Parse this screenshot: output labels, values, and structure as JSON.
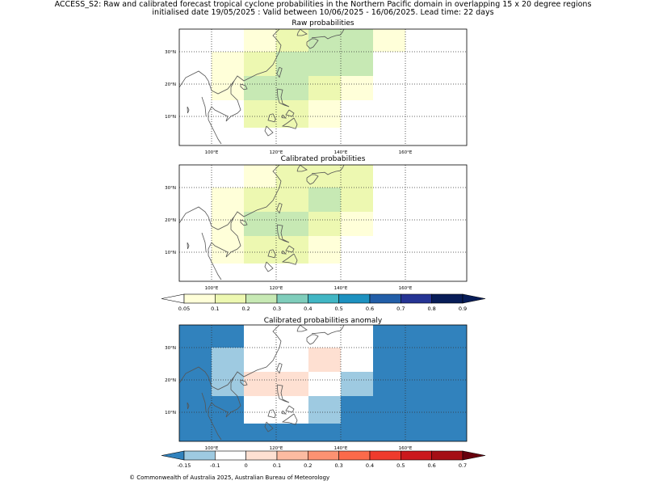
{
  "header": {
    "line1": "ACCESS_S2: Raw and calibrated forecast tropical cyclone probabilities in the Northern Pacific domain in overlapping 15 x 20 degree regions",
    "line2": "initialised date 19/05/2025 :  Valid between 10/06/2025 - 16/06/2025. Lead time: 22 days"
  },
  "footer": "© Commonwealth of Australia 2025, Australian Bureau of Meteorology",
  "axes": {
    "lon_ticks": [
      100,
      120,
      140,
      160
    ],
    "lat_ticks": [
      10,
      20,
      30
    ],
    "lon_labels": [
      "100°E",
      "120°E",
      "140°E",
      "160°E"
    ],
    "lat_labels": [
      "10°N",
      "20°N",
      "30°N"
    ],
    "lon_range": [
      90,
      179
    ],
    "lat_range": [
      1,
      37
    ],
    "grid": "dotted"
  },
  "colors": {
    "prob_bins": [
      "#ffffd9",
      "#edf8b1",
      "#c7e9b4",
      "#7fcdbb",
      "#41b6c4",
      "#1d91c0",
      "#225ea8",
      "#253494",
      "#081d58"
    ],
    "prob_under": "#ffffff",
    "prob_over": "#081d58",
    "anom_bins": [
      "#9ecae1",
      "#ffffff",
      "#fee0d2",
      "#fcbba1",
      "#fc9272",
      "#fb6a4a",
      "#ef3b2c",
      "#cb181d",
      "#a50f15"
    ],
    "anom_under": "#3182bd",
    "anom_over": "#67000d",
    "coast": "#555555"
  },
  "colorbars": {
    "prob_ticks": [
      "0.05",
      "0.1",
      "0.2",
      "0.3",
      "0.4",
      "0.5",
      "0.6",
      "0.7",
      "0.8",
      "0.9"
    ],
    "anom_ticks": [
      "-0.15",
      "-0.1",
      "0",
      "0.1",
      "0.2",
      "0.3",
      "0.4",
      "0.5",
      "0.6",
      "0.7"
    ]
  },
  "chart_data": [
    {
      "type": "heatmap",
      "title": "Raw probabilities",
      "cells": [
        {
          "lon": [
            110,
            120
          ],
          "lat": [
            30,
            37
          ],
          "value": 0.07
        },
        {
          "lon": [
            120,
            130
          ],
          "lat": [
            30,
            37
          ],
          "value": 0.15
        },
        {
          "lon": [
            130,
            140
          ],
          "lat": [
            30,
            37
          ],
          "value": 0.25
        },
        {
          "lon": [
            140,
            150
          ],
          "lat": [
            30,
            37
          ],
          "value": 0.25
        },
        {
          "lon": [
            150,
            160
          ],
          "lat": [
            30,
            37
          ],
          "value": 0.07
        },
        {
          "lon": [
            100,
            110
          ],
          "lat": [
            22.5,
            30
          ],
          "value": 0.07
        },
        {
          "lon": [
            110,
            120
          ],
          "lat": [
            22.5,
            30
          ],
          "value": 0.15
        },
        {
          "lon": [
            120,
            130
          ],
          "lat": [
            22.5,
            30
          ],
          "value": 0.25
        },
        {
          "lon": [
            130,
            140
          ],
          "lat": [
            22.5,
            30
          ],
          "value": 0.25
        },
        {
          "lon": [
            140,
            150
          ],
          "lat": [
            22.5,
            30
          ],
          "value": 0.25
        },
        {
          "lon": [
            100,
            110
          ],
          "lat": [
            15,
            22.5
          ],
          "value": 0.07
        },
        {
          "lon": [
            110,
            130
          ],
          "lat": [
            15,
            22.5
          ],
          "value": 0.25
        },
        {
          "lon": [
            130,
            140
          ],
          "lat": [
            15,
            22.5
          ],
          "value": 0.15
        },
        {
          "lon": [
            140,
            150
          ],
          "lat": [
            15,
            22.5
          ],
          "value": 0.07
        },
        {
          "lon": [
            110,
            120
          ],
          "lat": [
            6.5,
            15
          ],
          "value": 0.15
        },
        {
          "lon": [
            120,
            130
          ],
          "lat": [
            6.5,
            15
          ],
          "value": 0.15
        },
        {
          "lon": [
            130,
            140
          ],
          "lat": [
            6.5,
            15
          ],
          "value": 0.07
        }
      ]
    },
    {
      "type": "heatmap",
      "title": "Calibrated probabilities",
      "cells": [
        {
          "lon": [
            110,
            120
          ],
          "lat": [
            30,
            37
          ],
          "value": 0.07
        },
        {
          "lon": [
            120,
            130
          ],
          "lat": [
            30,
            37
          ],
          "value": 0.15
        },
        {
          "lon": [
            130,
            150
          ],
          "lat": [
            30,
            37
          ],
          "value": 0.15
        },
        {
          "lon": [
            100,
            110
          ],
          "lat": [
            22.5,
            30
          ],
          "value": 0.07
        },
        {
          "lon": [
            110,
            120
          ],
          "lat": [
            22.5,
            30
          ],
          "value": 0.15
        },
        {
          "lon": [
            120,
            130
          ],
          "lat": [
            22.5,
            30
          ],
          "value": 0.15
        },
        {
          "lon": [
            130,
            140
          ],
          "lat": [
            22.5,
            30
          ],
          "value": 0.25
        },
        {
          "lon": [
            140,
            150
          ],
          "lat": [
            22.5,
            30
          ],
          "value": 0.15
        },
        {
          "lon": [
            100,
            110
          ],
          "lat": [
            15,
            22.5
          ],
          "value": 0.07
        },
        {
          "lon": [
            110,
            130
          ],
          "lat": [
            15,
            22.5
          ],
          "value": 0.25
        },
        {
          "lon": [
            130,
            140
          ],
          "lat": [
            15,
            22.5
          ],
          "value": 0.15
        },
        {
          "lon": [
            140,
            150
          ],
          "lat": [
            15,
            22.5
          ],
          "value": 0.07
        },
        {
          "lon": [
            100,
            110
          ],
          "lat": [
            6.5,
            15
          ],
          "value": 0.07
        },
        {
          "lon": [
            110,
            120
          ],
          "lat": [
            6.5,
            15
          ],
          "value": 0.15
        },
        {
          "lon": [
            120,
            130
          ],
          "lat": [
            6.5,
            15
          ],
          "value": 0.15
        },
        {
          "lon": [
            130,
            140
          ],
          "lat": [
            6.5,
            15
          ],
          "value": 0.07
        }
      ]
    },
    {
      "type": "heatmap",
      "title": "Calibrated probabilities anomaly",
      "background_value": -0.2,
      "cells": [
        {
          "lon": [
            110,
            120
          ],
          "lat": [
            30,
            37
          ],
          "value": -0.12
        },
        {
          "lon": [
            100,
            110
          ],
          "lat": [
            15,
            30
          ],
          "value": -0.12
        },
        {
          "lon": [
            110,
            130
          ],
          "lat": [
            22.5,
            37
          ],
          "value": -0.05
        },
        {
          "lon": [
            130,
            140
          ],
          "lat": [
            22.5,
            37
          ],
          "value": -0.05
        },
        {
          "lon": [
            140,
            150
          ],
          "lat": [
            22.5,
            37
          ],
          "value": -0.05
        },
        {
          "lon": [
            130,
            140
          ],
          "lat": [
            22.5,
            30
          ],
          "value": 0.05
        },
        {
          "lon": [
            110,
            130
          ],
          "lat": [
            15,
            22.5
          ],
          "value": 0.05
        },
        {
          "lon": [
            130,
            140
          ],
          "lat": [
            15,
            22.5
          ],
          "value": -0.05
        },
        {
          "lon": [
            140,
            150
          ],
          "lat": [
            15,
            22.5
          ],
          "value": -0.12
        },
        {
          "lon": [
            110,
            130
          ],
          "lat": [
            6.5,
            15
          ],
          "value": -0.05
        },
        {
          "lon": [
            130,
            140
          ],
          "lat": [
            6.5,
            15
          ],
          "value": -0.12
        }
      ]
    }
  ]
}
